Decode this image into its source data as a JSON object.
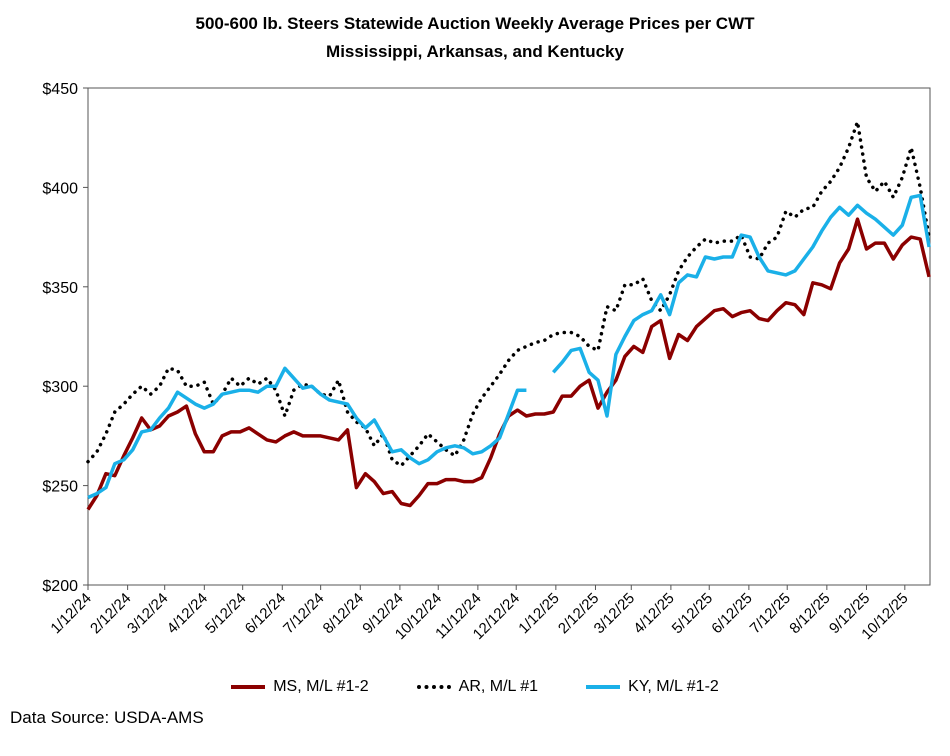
{
  "chart_data": {
    "type": "line",
    "title": "500-600 lb. Steers Statewide Auction Weekly Average Prices per CWT",
    "subtitle": "Mississippi, Arkansas, and Kentucky",
    "xlabel": "",
    "ylabel": "",
    "x_start": "2024-01-12",
    "x_frequency": "weekly",
    "x_tick_labels": [
      "1/12/24",
      "2/12/24",
      "3/12/24",
      "4/12/24",
      "5/12/24",
      "6/12/24",
      "7/12/24",
      "8/12/24",
      "9/12/24",
      "10/12/24",
      "11/12/24",
      "12/12/24",
      "1/12/25",
      "2/12/25",
      "3/12/25",
      "4/12/25",
      "5/12/25",
      "6/12/25",
      "7/12/25",
      "8/12/25",
      "9/12/25",
      "10/12/25"
    ],
    "y_tick_labels": [
      "$200",
      "$250",
      "$300",
      "$350",
      "$400",
      "$450"
    ],
    "ylim": [
      200,
      450
    ],
    "grid": false,
    "legend_position": "bottom",
    "series": [
      {
        "name": "MS, M/L #1-2",
        "color": "#8B0000",
        "style": "solid",
        "values": [
          238,
          245,
          256,
          255,
          265,
          274,
          284,
          278,
          280,
          285,
          287,
          290,
          276,
          267,
          267,
          275,
          277,
          277,
          279,
          276,
          273,
          272,
          275,
          277,
          275,
          275,
          275,
          274,
          273,
          278,
          249,
          256,
          252,
          246,
          247,
          241,
          240,
          245,
          251,
          251,
          253,
          253,
          252,
          252,
          254,
          264,
          276,
          285,
          288,
          285,
          286,
          286,
          287,
          295,
          295,
          300,
          303,
          289,
          297,
          303,
          315,
          320,
          317,
          330,
          333,
          314,
          326,
          323,
          330,
          334,
          338,
          339,
          335,
          337,
          338,
          334,
          333,
          338,
          342,
          341,
          336,
          352,
          351,
          349,
          362,
          369,
          384,
          369,
          372,
          372,
          364,
          371,
          375,
          374,
          355
        ]
      },
      {
        "name": "AR, M/L #1",
        "color": "#000000",
        "style": "dotted",
        "values": [
          262,
          267,
          276,
          287,
          291,
          296,
          300,
          296,
          300,
          309,
          308,
          300,
          300,
          302,
          291,
          296,
          304,
          300,
          304,
          301,
          304,
          298,
          285,
          298,
          301,
          300,
          296,
          295,
          303,
          287,
          282,
          279,
          270,
          276,
          263,
          260,
          265,
          270,
          276,
          272,
          268,
          265,
          273,
          286,
          294,
          300,
          306,
          313,
          318,
          320,
          322,
          323,
          326,
          327,
          327,
          325,
          320,
          318,
          340,
          338,
          351,
          351,
          354,
          343,
          338,
          346,
          358,
          365,
          370,
          374,
          372,
          373,
          373,
          376,
          365,
          364,
          372,
          375,
          388,
          385,
          389,
          390,
          398,
          403,
          410,
          420,
          433,
          405,
          398,
          403,
          395,
          405,
          420,
          400,
          375
        ]
      },
      {
        "name": "KY, M/L #1-2",
        "color": "#1AB0E8",
        "style": "solid",
        "values": [
          244,
          246,
          249,
          261,
          263,
          268,
          277,
          278,
          284,
          289,
          297,
          294,
          291,
          289,
          291,
          296,
          297,
          298,
          298,
          297,
          300,
          300,
          309,
          304,
          299,
          300,
          296,
          293,
          292,
          291,
          284,
          279,
          283,
          275,
          267,
          268,
          264,
          261,
          263,
          267,
          269,
          270,
          269,
          266,
          267,
          270,
          274,
          286,
          298,
          298,
          null,
          null,
          307,
          312,
          318,
          319,
          307,
          303,
          285,
          316,
          325,
          333,
          336,
          338,
          346,
          336,
          352,
          356,
          355,
          365,
          364,
          365,
          365,
          376,
          375,
          365,
          358,
          357,
          356,
          358,
          364,
          370,
          378,
          385,
          390,
          386,
          391,
          387,
          384,
          380,
          376,
          381,
          395,
          396,
          370
        ]
      }
    ]
  },
  "source": "Data Source: USDA-AMS"
}
